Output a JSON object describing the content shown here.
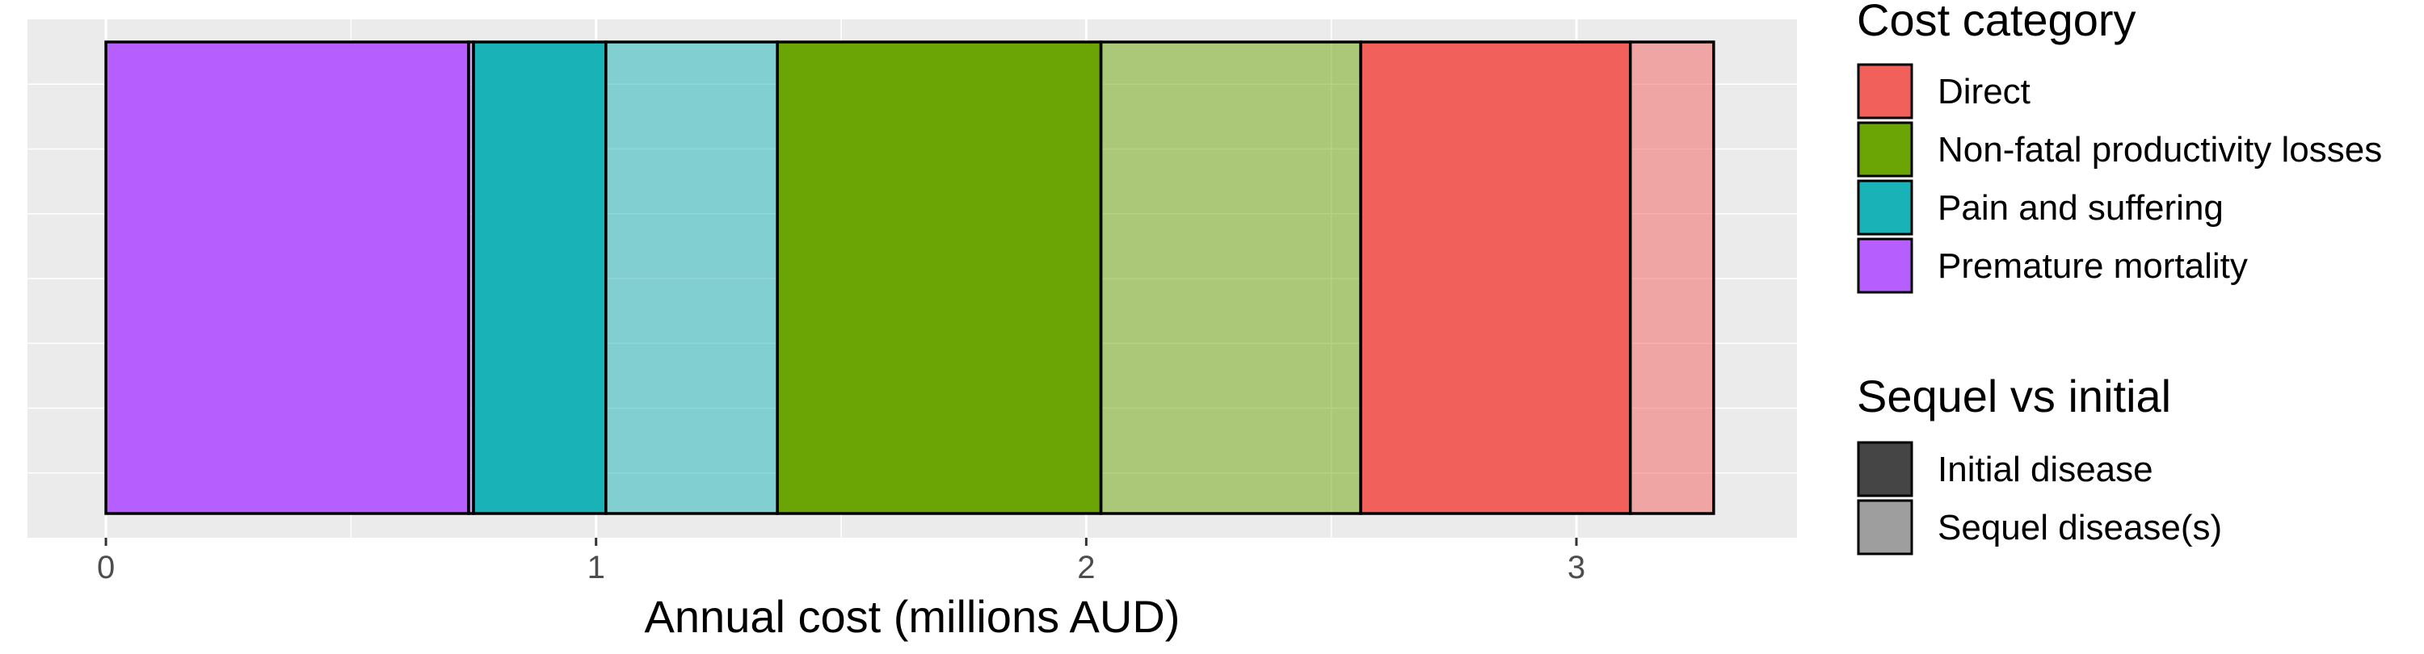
{
  "chart_data": {
    "type": "bar",
    "orientation": "horizontal-stacked",
    "xlabel": "Annual cost (millions AUD)",
    "ylabel": "",
    "xlim": [
      -0.16,
      3.45
    ],
    "x_ticks": [
      0,
      1,
      2,
      3
    ],
    "x_minor_ticks": [
      0.5,
      1.5,
      2.5
    ],
    "grid": true,
    "legend_position": "right",
    "segments": [
      {
        "category": "Premature mortality",
        "type": "Initial disease",
        "value": 0.74,
        "color": "#B75EFF",
        "alpha": 1.0
      },
      {
        "category": "Premature mortality",
        "type": "Sequel disease(s)",
        "value": 0.01,
        "color": "#B75EFF",
        "alpha": 0.5
      },
      {
        "category": "Pain and suffering",
        "type": "Initial disease",
        "value": 0.27,
        "color": "#19B3B7",
        "alpha": 1.0
      },
      {
        "category": "Pain and suffering",
        "type": "Sequel disease(s)",
        "value": 0.35,
        "color": "#19B3B7",
        "alpha": 0.5
      },
      {
        "category": "Non-fatal productivity losses",
        "type": "Initial disease",
        "value": 0.66,
        "color": "#6BA405",
        "alpha": 1.0
      },
      {
        "category": "Non-fatal productivity losses",
        "type": "Sequel disease(s)",
        "value": 0.53,
        "color": "#6BA405",
        "alpha": 0.5
      },
      {
        "category": "Direct",
        "type": "Initial disease",
        "value": 0.55,
        "color": "#F2605C",
        "alpha": 1.0
      },
      {
        "category": "Direct",
        "type": "Sequel disease(s)",
        "value": 0.17,
        "color": "#F2605C",
        "alpha": 0.5
      }
    ],
    "legends": [
      {
        "title": "Cost category",
        "entries": [
          {
            "label": "Direct",
            "color": "#F2605C"
          },
          {
            "label": "Non-fatal productivity losses",
            "color": "#6BA405"
          },
          {
            "label": "Pain and suffering",
            "color": "#19B3B7"
          },
          {
            "label": "Premature mortality",
            "color": "#B75EFF"
          }
        ]
      },
      {
        "title": "Sequel vs initial",
        "entries": [
          {
            "label": "Initial disease",
            "color": "#454545"
          },
          {
            "label": "Sequel disease(s)",
            "color": "#9E9E9E"
          }
        ]
      }
    ]
  }
}
